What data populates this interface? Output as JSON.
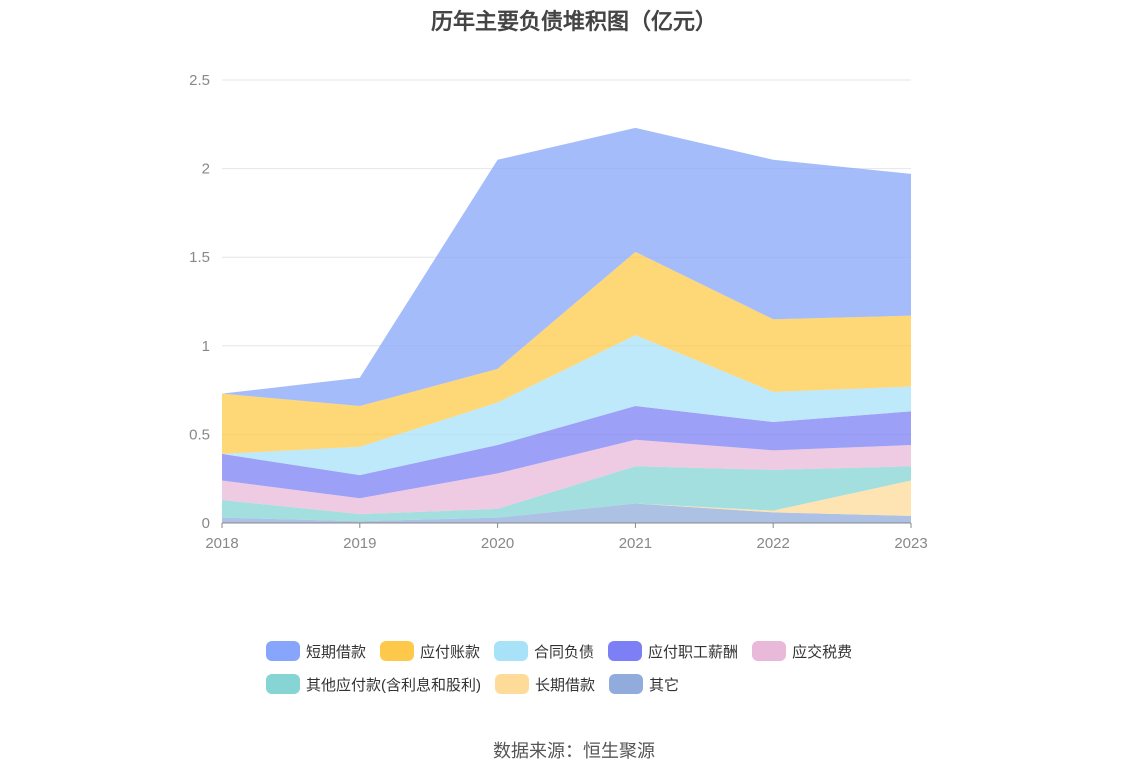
{
  "title": "历年主要负债堆积图（亿元）",
  "source": "数据来源：恒生聚源",
  "chart_data": {
    "type": "area",
    "stacked": true,
    "categories": [
      "2018",
      "2019",
      "2020",
      "2021",
      "2022",
      "2023"
    ],
    "ylim": [
      0,
      2.5
    ],
    "yticks": [
      "0",
      "0.5",
      "1",
      "1.5",
      "2",
      "2.5"
    ],
    "grid": true,
    "legend_position": "bottom",
    "series": [
      {
        "name": "其它",
        "color": "#91acdc",
        "values": [
          0.03,
          0.01,
          0.03,
          0.11,
          0.06,
          0.04
        ]
      },
      {
        "name": "长期借款",
        "color": "#ffdb9a",
        "values": [
          0.0,
          0.0,
          0.0,
          0.0,
          0.01,
          0.2
        ]
      },
      {
        "name": "其他应付款(含利息和股利)",
        "color": "#86d4d4",
        "values": [
          0.1,
          0.04,
          0.05,
          0.21,
          0.23,
          0.08
        ]
      },
      {
        "name": "应交税费",
        "color": "#e8b9d8",
        "values": [
          0.11,
          0.09,
          0.2,
          0.15,
          0.11,
          0.12
        ]
      },
      {
        "name": "应付职工薪酬",
        "color": "#7c80f4",
        "values": [
          0.15,
          0.13,
          0.16,
          0.19,
          0.16,
          0.19
        ]
      },
      {
        "name": "合同负债",
        "color": "#a8e2f8",
        "values": [
          0.0,
          0.16,
          0.24,
          0.4,
          0.17,
          0.14
        ]
      },
      {
        "name": "应付账款",
        "color": "#fec94a",
        "values": [
          0.34,
          0.23,
          0.19,
          0.47,
          0.41,
          0.4
        ]
      },
      {
        "name": "短期借款",
        "color": "#87a5fa",
        "values": [
          0.0,
          0.16,
          1.18,
          0.7,
          0.9,
          0.8
        ]
      }
    ],
    "legend_order": [
      "短期借款",
      "应付账款",
      "合同负债",
      "应付职工薪酬",
      "应交税费",
      "其他应付款(含利息和股利)",
      "长期借款",
      "其它"
    ]
  }
}
